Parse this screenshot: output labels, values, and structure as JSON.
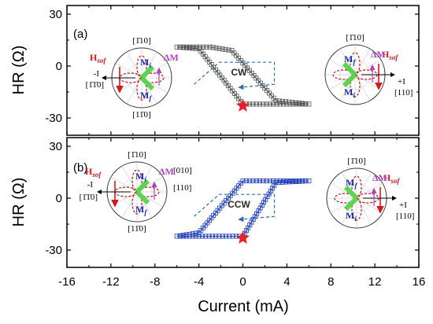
{
  "chart_data": {
    "type": "line",
    "xlabel": "Current (mA)",
    "ylabel": "HR (Ω)",
    "xlim": [
      -16,
      16
    ],
    "x_ticks": [
      "-16",
      "-12",
      "-8",
      "-4",
      "0",
      "4",
      "8",
      "12",
      "16"
    ],
    "y_ticks": [
      "30",
      "0",
      "-30"
    ],
    "panels": [
      {
        "label": "(a)",
        "ylim": [
          -40,
          35
        ],
        "loop_direction": "CW",
        "marker_color": "#555555",
        "hysteresis": {
          "upper_branch": {
            "x": [
              -6,
              -3,
              -1,
              3,
              6
            ],
            "y": [
              11,
              11,
              9,
              -20,
              -22
            ]
          },
          "lower_branch": {
            "x": [
              6,
              4,
              0,
              -4,
              -6
            ],
            "y": [
              -22,
              -22,
              -22,
              10,
              11
            ]
          },
          "switch_up_at": -4,
          "switch_down_at": 3
        },
        "star": {
          "x": 0,
          "y": -23
        },
        "insets": [
          {
            "labels": [
              "[1̄10]",
              "-I",
              "[1̄1̄0]",
              "[11̄0]"
            ],
            "vectors": [
              "M",
              "M"
            ],
            "vector_subscripts": [
              "i",
              "f"
            ],
            "field_label": "H",
            "field_subscript": "sof",
            "delta_label": "ΔM"
          },
          {
            "labels": [
              "[1̄10]",
              "+I",
              "[110]"
            ],
            "vectors": [
              "M",
              "M"
            ],
            "vector_subscripts": [
              "f",
              "i"
            ],
            "field_label": "H",
            "field_subscript": "sof",
            "delta_label": "ΔM"
          }
        ]
      },
      {
        "label": "(b)",
        "ylim": [
          -40,
          35
        ],
        "loop_direction": "CCW",
        "marker_color": "#1f3fb8",
        "hysteresis": {
          "upper_branch": {
            "x": [
              -6,
              -4,
              0,
              3,
              6
            ],
            "y": [
              -22,
              -22,
              -22,
              9,
              10
            ]
          },
          "lower_branch": {
            "x": [
              6,
              4,
              0,
              -4,
              -6
            ],
            "y": [
              10,
              10,
              10,
              -20,
              -22
            ]
          },
          "switch_up_at": 3,
          "switch_down_at": -4
        },
        "star": {
          "x": 0,
          "y": -23
        },
        "insets": [
          {
            "labels": [
              "[1̄10]",
              "[010]",
              "[110]",
              "-I",
              "[1̄1̄0]",
              "[11̄0]"
            ],
            "vectors": [
              "M",
              "M"
            ],
            "vector_subscripts": [
              "i",
              "f"
            ],
            "field_label": "H",
            "field_subscript": "sof",
            "delta_label": "ΔM"
          },
          {
            "labels": [
              "[1̄10]",
              "+I",
              "[110]"
            ],
            "vectors": [
              "M",
              "M"
            ],
            "vector_subscripts": [
              "f",
              "i"
            ],
            "field_label": "H",
            "field_subscript": "sof",
            "delta_label": "ΔM"
          }
        ]
      }
    ]
  }
}
